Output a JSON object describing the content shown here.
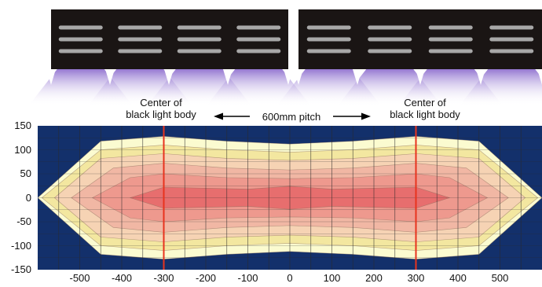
{
  "annotations": {
    "left_center_line1": "Center of",
    "left_center_line2": "black light body",
    "right_center_line1": "Center of",
    "right_center_line2": "black light body",
    "pitch": "600mm pitch"
  },
  "colors": {
    "lamp_housing": "#1a1514",
    "lamp_tube": "#a8a8a8",
    "uv_glow": "#a48bd6",
    "field_outer": "#13306b",
    "band1": "#fbfbd0",
    "band2": "#f3e7a0",
    "band3": "#f6d3b4",
    "band4": "#f1b7a4",
    "band5": "#ee998e",
    "band6": "#e76e6e",
    "center_marker": "#e8331e"
  },
  "chart_data": {
    "type": "heatmap",
    "title": "",
    "xlabel": "",
    "ylabel": "",
    "xlim": [
      -600,
      600
    ],
    "ylim": [
      -150,
      150
    ],
    "x_ticks": [
      -500,
      -400,
      -300,
      -200,
      -100,
      0,
      100,
      200,
      300,
      400,
      500
    ],
    "y_ticks": [
      150,
      100,
      50,
      0,
      -50,
      -100,
      -150
    ],
    "lamp_centers": [
      -300,
      300
    ],
    "lamps": 2,
    "tubes_per_lamp": 4,
    "grid": true,
    "contour_levels": [
      {
        "x": [
          -600,
          -450,
          -300,
          -150,
          0,
          150,
          300,
          450,
          600
        ],
        "half_width": [
          0,
          118,
          128,
          118,
          112,
          118,
          128,
          118,
          0
        ]
      },
      {
        "x": [
          -590,
          -450,
          -300,
          -150,
          0,
          150,
          300,
          450,
          590
        ],
        "half_width": [
          0,
          100,
          110,
          100,
          95,
          100,
          110,
          100,
          0
        ]
      },
      {
        "x": [
          -560,
          -450,
          -300,
          -150,
          0,
          150,
          300,
          450,
          560
        ],
        "half_width": [
          0,
          82,
          92,
          82,
          78,
          82,
          92,
          82,
          0
        ]
      },
      {
        "x": [
          -520,
          -420,
          -300,
          -150,
          0,
          150,
          300,
          420,
          520
        ],
        "half_width": [
          0,
          62,
          72,
          62,
          58,
          62,
          72,
          62,
          0
        ]
      },
      {
        "x": [
          -470,
          -380,
          -300,
          -150,
          0,
          150,
          300,
          380,
          470
        ],
        "half_width": [
          0,
          42,
          50,
          42,
          40,
          42,
          50,
          42,
          0
        ]
      },
      {
        "x": [
          -380,
          -300,
          -200,
          -100,
          0,
          100,
          200,
          300,
          380
        ],
        "half_width": [
          0,
          22,
          20,
          18,
          24,
          18,
          20,
          22,
          0
        ]
      }
    ]
  }
}
